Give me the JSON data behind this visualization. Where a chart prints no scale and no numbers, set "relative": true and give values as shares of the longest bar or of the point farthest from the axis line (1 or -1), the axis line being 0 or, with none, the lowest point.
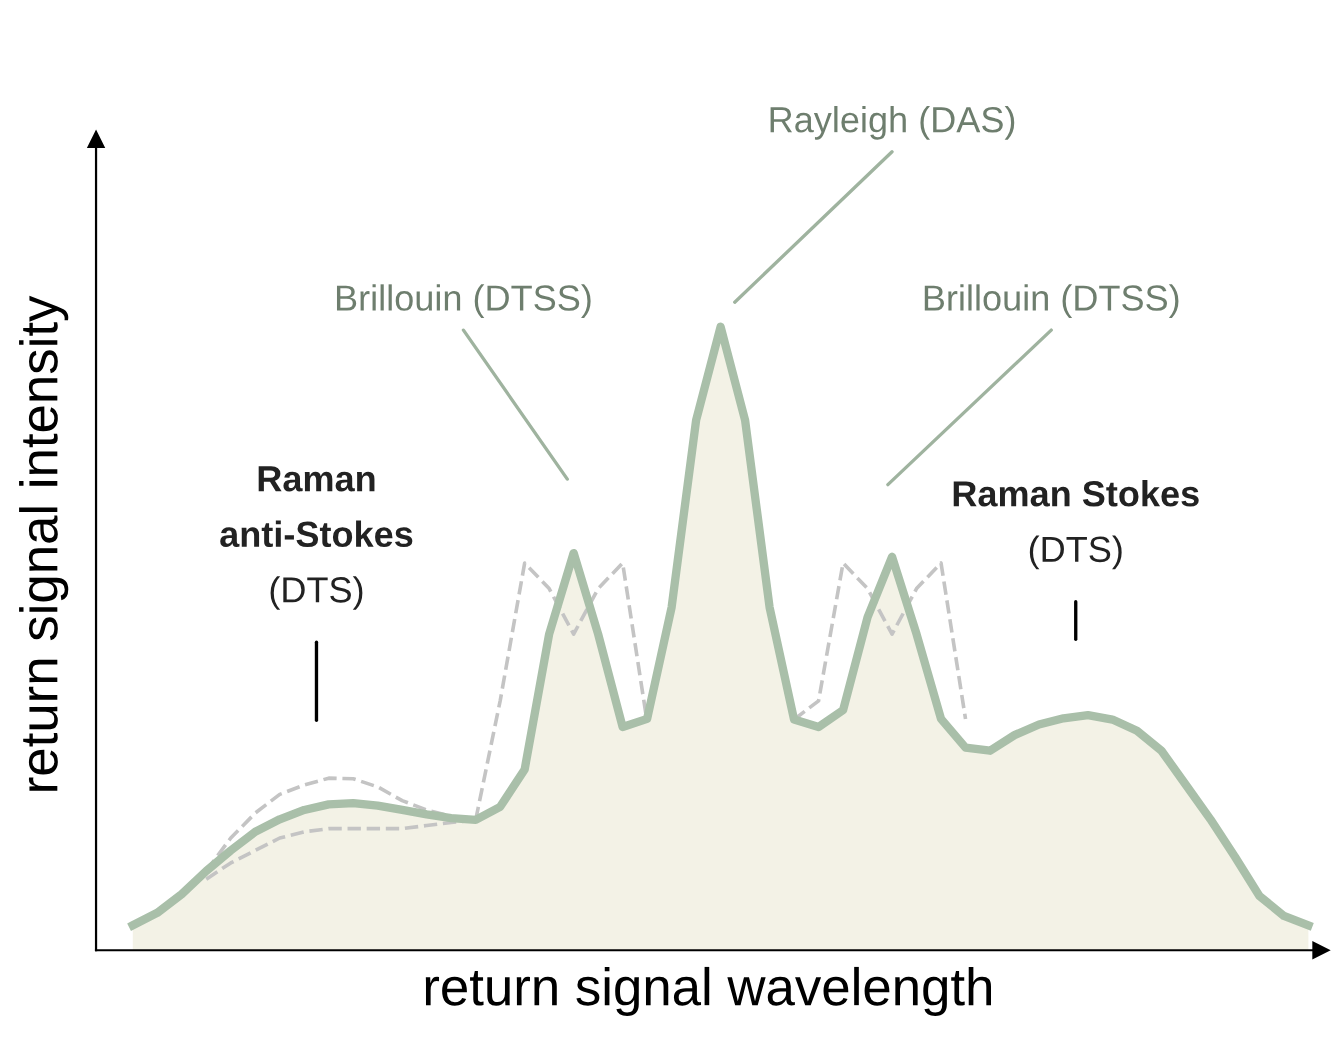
{
  "chart_data": {
    "type": "area",
    "relative": true,
    "xlabel": "return signal wavelength",
    "ylabel": "return signal intensity",
    "categories": [
      null,
      null,
      null,
      null,
      null,
      null,
      null,
      null,
      null,
      null,
      null,
      null,
      null,
      null,
      null,
      null,
      null,
      null,
      null,
      null,
      null,
      null,
      null,
      null,
      null,
      null,
      null,
      null,
      null,
      null,
      null,
      null,
      null,
      null,
      null,
      null,
      null,
      null,
      null,
      null,
      null,
      null,
      null,
      null,
      null,
      null,
      null,
      null,
      null
    ],
    "series": [
      {
        "color": "#a9bfa9",
        "values": [
          0.04,
          0.06,
          0.09,
          0.127,
          0.16,
          0.19,
          0.21,
          0.225,
          0.234,
          0.236,
          0.232,
          0.225,
          0.218,
          0.212,
          0.209,
          0.23,
          0.29,
          0.507,
          0.637,
          0.507,
          0.358,
          0.371,
          0.55,
          0.85,
          1.0,
          0.85,
          0.55,
          0.37,
          0.358,
          0.385,
          0.534,
          0.631,
          0.507,
          0.371,
          0.325,
          0.32,
          0.345,
          0.362,
          0.372,
          0.377,
          0.37,
          0.352,
          0.32,
          0.265,
          0.21,
          0.15,
          0.087,
          0.055,
          0.04
        ]
      },
      {
        "type": "line",
        "color": "#c4c4c4",
        "line_style": "dashed",
        "values": [
          null,
          null,
          null,
          null,
          null,
          null,
          null,
          null,
          null,
          null,
          null,
          null,
          null,
          null,
          0.209,
          0.4,
          0.621,
          0.58,
          0.507,
          0.58,
          0.621,
          0.366,
          null,
          null,
          null,
          null,
          null,
          null,
          null,
          null,
          null,
          null,
          null,
          null,
          null,
          null,
          null,
          null,
          null,
          null,
          null,
          null,
          null,
          null,
          null,
          null,
          null,
          null,
          null
        ]
      },
      {
        "type": "line",
        "color": "#c4c4c4",
        "line_style": "dashed",
        "values": [
          null,
          null,
          null,
          null,
          null,
          null,
          null,
          null,
          null,
          null,
          null,
          null,
          null,
          null,
          null,
          null,
          null,
          null,
          null,
          null,
          null,
          null,
          null,
          null,
          null,
          null,
          null,
          0.37,
          0.4,
          0.621,
          0.58,
          0.507,
          0.58,
          0.621,
          0.371,
          null,
          null,
          null,
          null,
          null,
          null,
          null,
          null,
          null,
          null,
          null,
          null,
          null,
          null
        ]
      },
      {
        "type": "line",
        "color": "#c4c4c4",
        "line_style": "dashed",
        "values": [
          null,
          null,
          null,
          0.127,
          0.18,
          0.22,
          0.25,
          0.265,
          0.276,
          0.275,
          0.262,
          0.24,
          0.225,
          0.215,
          0.209,
          null,
          null,
          null,
          null,
          null,
          null,
          null,
          null,
          null,
          null,
          null,
          null,
          null,
          null,
          null,
          null,
          null,
          null,
          null,
          null,
          null,
          null,
          null,
          null,
          null,
          null,
          null,
          null,
          null,
          null,
          null,
          null,
          null,
          null
        ]
      },
      {
        "type": "line",
        "color": "#c4c4c4",
        "line_style": "dashed",
        "values": [
          null,
          null,
          null,
          0.114,
          0.14,
          0.16,
          0.18,
          0.19,
          0.195,
          0.195,
          0.195,
          0.195,
          0.2,
          0.205,
          0.209,
          null,
          null,
          null,
          null,
          null,
          null,
          null,
          null,
          null,
          null,
          null,
          null,
          null,
          null,
          null,
          null,
          null,
          null,
          null,
          null,
          null,
          null,
          null,
          null,
          null,
          null,
          null,
          null,
          null,
          null,
          null,
          null,
          null,
          null
        ]
      }
    ],
    "annotations": [
      "Rayleigh (DAS)",
      "Brillouin (DTSS)",
      "Brillouin (DTSS)",
      "Raman\nanti-Stokes\n(DTS)",
      "Raman Stokes\n(DTS)"
    ]
  }
}
